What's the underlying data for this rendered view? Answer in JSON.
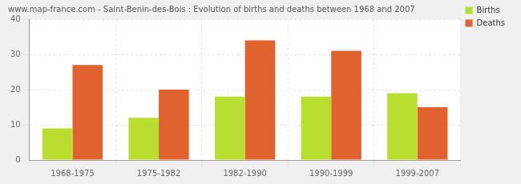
{
  "chart_data": {
    "type": "bar",
    "title": "www.map-france.com - Saint-Benin-des-Bois : Evolution of births and deaths between 1968 and 2007",
    "categories": [
      "1968-1975",
      "1975-1982",
      "1982-1990",
      "1990-1999",
      "1999-2007"
    ],
    "series": [
      {
        "name": "Births",
        "color": "#bade2f",
        "values": [
          9,
          12,
          18,
          18,
          19
        ]
      },
      {
        "name": "Deaths",
        "color": "#e0622f",
        "values": [
          27,
          20,
          34,
          31,
          15
        ]
      }
    ],
    "ylim": [
      0,
      40
    ],
    "yticks": [
      0,
      10,
      20,
      30,
      40
    ],
    "grid": true,
    "legend": "right"
  }
}
